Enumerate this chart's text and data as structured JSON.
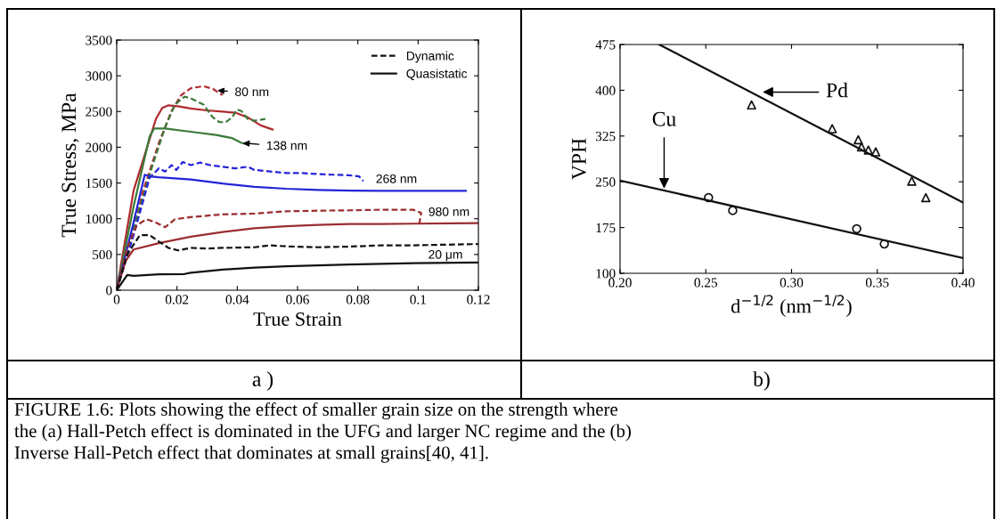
{
  "chart_data": [
    {
      "type": "line",
      "xlabel": "True Strain",
      "ylabel": "True Stress, MPa",
      "xlim": [
        0,
        0.12
      ],
      "ylim": [
        0,
        3500
      ],
      "xticks": [
        0,
        0.02,
        0.04,
        0.06,
        0.08,
        0.1,
        0.12
      ],
      "yticks": [
        0,
        500,
        1000,
        1500,
        2000,
        2500,
        3000,
        3500
      ],
      "grid": false,
      "legend": "top right",
      "series": [
        {
          "color": "#b02a2e",
          "line_style": "solid",
          "x": [
            0,
            0.0056,
            0.013,
            0.0151,
            0.0172,
            0.0203,
            0.0246,
            0.0298,
            0.0351,
            0.0393,
            0.0435,
            0.0478,
            0.0517
          ],
          "values": [
            0,
            1394,
            2395,
            2551,
            2587,
            2574,
            2542,
            2516,
            2498,
            2484,
            2418,
            2306,
            2248
          ]
        },
        {
          "color": "#b02a2e",
          "line_style": "dashed",
          "x": [
            0,
            0.0035,
            0.0088,
            0.014,
            0.0182,
            0.0214,
            0.0246,
            0.0288,
            0.0319,
            0.0351
          ],
          "values": [
            0,
            503,
            1394,
            2061,
            2507,
            2729,
            2827,
            2854,
            2818,
            2729
          ]
        },
        {
          "color": "#3b7a3b",
          "line_style": "solid",
          "x": [
            0,
            0.0056,
            0.0109,
            0.0124,
            0.0161,
            0.0246,
            0.033,
            0.0383,
            0.0414,
            0.0435
          ],
          "values": [
            0,
            1171,
            2150,
            2261,
            2261,
            2217,
            2172,
            2128,
            2061,
            2039
          ]
        },
        {
          "color": "#3b7a3b",
          "line_style": "dashed",
          "x": [
            0,
            0.0056,
            0.0119,
            0.0161,
            0.0193,
            0.0225,
            0.0246,
            0.0288,
            0.0319,
            0.0341,
            0.0362,
            0.0383,
            0.0399,
            0.0414,
            0.0435,
            0.0457,
            0.0493
          ],
          "values": [
            0,
            859,
            1750,
            2284,
            2596,
            2707,
            2685,
            2596,
            2418,
            2351,
            2351,
            2418,
            2529,
            2507,
            2395,
            2373,
            2395
          ]
        },
        {
          "color": "#2424d8",
          "line_style": "solid",
          "x": [
            0,
            0.0056,
            0.0093,
            0.0109,
            0.014,
            0.0246,
            0.0351,
            0.0457,
            0.0562,
            0.0667,
            0.0773,
            0.0878,
            0.1158
          ],
          "values": [
            0,
            948,
            1616,
            1594,
            1581,
            1550,
            1492,
            1447,
            1420,
            1403,
            1394,
            1389,
            1389
          ]
        },
        {
          "color": "#2424d8",
          "line_style": "dashed",
          "x": [
            0,
            0.0056,
            0.0109,
            0.014,
            0.0161,
            0.0182,
            0.0198,
            0.0219,
            0.0246,
            0.0277,
            0.0309,
            0.0351,
            0.0393,
            0.0435,
            0.0457,
            0.0509,
            0.0562,
            0.0615,
            0.0667,
            0.072,
            0.0773,
            0.0804,
            0.0818
          ],
          "values": [
            0,
            770,
            1572,
            1705,
            1661,
            1750,
            1683,
            1794,
            1750,
            1786,
            1750,
            1728,
            1705,
            1728,
            1683,
            1661,
            1639,
            1639,
            1625,
            1616,
            1607,
            1594,
            1527
          ]
        },
        {
          "color": "#9b2d30",
          "line_style": "solid",
          "x": [
            0,
            0.003,
            0.0056,
            0.014,
            0.0246,
            0.0351,
            0.0457,
            0.0562,
            0.0667,
            0.0773,
            0.0878,
            0.0984,
            0.12
          ],
          "values": [
            0,
            414,
            570,
            659,
            748,
            815,
            868,
            895,
            913,
            926,
            926,
            931,
            940
          ]
        },
        {
          "color": "#9b2d30",
          "line_style": "dashed",
          "x": [
            0,
            0.0035,
            0.0066,
            0.0098,
            0.013,
            0.0161,
            0.0193,
            0.0246,
            0.0351,
            0.0457,
            0.0562,
            0.0667,
            0.0773,
            0.0878,
            0.0984,
            0.101,
            0.1003
          ],
          "values": [
            0,
            592,
            904,
            993,
            948,
            882,
            993,
            1024,
            1060,
            1073,
            1104,
            1113,
            1118,
            1126,
            1126,
            1082,
            904
          ]
        },
        {
          "name": "Quasistatic",
          "color": "#111111",
          "line_style": "solid",
          "x": [
            0,
            0.0035,
            0.0056,
            0.014,
            0.0225,
            0.0246,
            0.0351,
            0.0457,
            0.0562,
            0.0667,
            0.0773,
            0.0878,
            0.0984,
            0.12
          ],
          "values": [
            0,
            214,
            200,
            223,
            227,
            245,
            289,
            316,
            334,
            347,
            361,
            370,
            378,
            387
          ]
        },
        {
          "name": "Dynamic",
          "color": "#111111",
          "line_style": "dashed",
          "x": [
            0,
            0.0035,
            0.0077,
            0.0109,
            0.014,
            0.0172,
            0.0203,
            0.0246,
            0.0298,
            0.0351,
            0.0457,
            0.0509,
            0.0562,
            0.0667,
            0.0773,
            0.0878,
            0.0984,
            0.109,
            0.12
          ],
          "values": [
            0,
            503,
            770,
            770,
            681,
            592,
            557,
            592,
            583,
            592,
            601,
            628,
            614,
            601,
            610,
            628,
            628,
            637,
            646
          ]
        }
      ],
      "annotations": [
        {
          "text": "80 nm",
          "x": 0.033,
          "y": 2796
        },
        {
          "text": "138 nm",
          "x": 0.0414,
          "y": 2061
        },
        "268 nm",
        "980 nm",
        "20 μm",
        "a )"
      ]
    },
    {
      "type": "scatter",
      "xlabel": "d$^{−1/2}$ (nm$^{−1/2}$)",
      "ylabel": "VPH",
      "xlim": [
        0.2,
        0.4
      ],
      "ylim": [
        100,
        475
      ],
      "xticks": [
        {
          "value": 0.2,
          "label": "0.20"
        },
        0.25,
        {
          "value": 0.3,
          "label": "0.30"
        },
        0.35,
        {
          "value": 0.4,
          "label": "0.40"
        }
      ],
      "yticks": [
        100,
        175,
        250,
        325,
        400,
        475
      ],
      "grid": false,
      "series": [
        {
          "color": "#111111",
          "marker": "triangle",
          "x": [
            0.2767,
            0.3237,
            0.3389,
            0.3408,
            0.3448,
            0.3491,
            0.3701,
            0.3783
          ],
          "values": [
            376,
            337,
            319,
            307,
            302,
            299,
            251,
            224
          ]
        },
        {
          "color": "#111111",
          "marker": "circle",
          "x": [
            0.2516,
            0.2657,
            0.338,
            0.3541
          ],
          "values": [
            224,
            203,
            173,
            148
          ]
        },
        {
          "type": "line",
          "color": "#111111",
          "line_style": "solid",
          "x": [
            0.2228,
            0.4
          ],
          "values": [
            475,
            216
          ]
        },
        {
          "type": "line",
          "color": "#111111",
          "line_style": "solid",
          "x": [
            0.2,
            0.4
          ],
          "values": [
            252,
            125
          ]
        }
      ],
      "annotations": [
        {
          "text": "Pd",
          "x": 0.2825,
          "y": 397
        },
        {
          "text": "Cu",
          "x": 0.2257,
          "y": 237
        },
        "b)",
        "FIGURE 1.6: Plots showing the effect of smaller grain size on the strength where\nthe (a) Hall-Petch effect is dominated in the UFG and larger NC regime and the (b)\nInverse Hall-Petch effect that dominates at small grains[40, 41]."
      ]
    }
  ]
}
